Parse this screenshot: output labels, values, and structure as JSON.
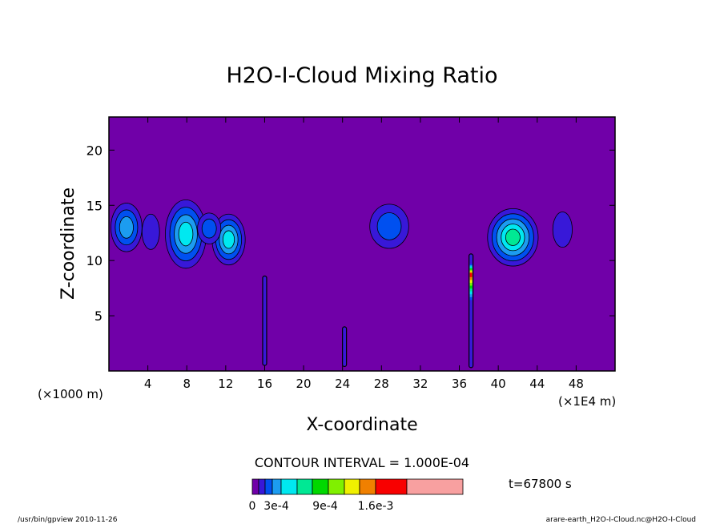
{
  "chart_data": {
    "type": "heatmap",
    "title": "H2O-I-Cloud Mixing Ratio",
    "xlabel": "X-coordinate",
    "ylabel": "Z-coordinate",
    "x_unit": "(×1E4 m)",
    "y_unit": "(×1000 m)",
    "xlim": [
      0,
      52
    ],
    "ylim": [
      0,
      23
    ],
    "x_ticks": [
      4,
      8,
      12,
      16,
      20,
      24,
      28,
      32,
      36,
      40,
      44,
      48
    ],
    "y_ticks": [
      5,
      10,
      15,
      20
    ],
    "contour_interval": "CONTOUR INTERVAL = 1.000E-04",
    "time_label": "t=67800 s",
    "footer_left": "/usr/bin/gpview  2010-11-26",
    "footer_right": "arare-earth_H2O-I-Cloud.nc@H2O-I-Cloud",
    "colorbar": {
      "colors": [
        "#7000a8",
        "#3818d8",
        "#0050f0",
        "#1c9cf0",
        "#00e8f0",
        "#00e894",
        "#00d800",
        "#80f000",
        "#f0f000",
        "#f08000",
        "#f80000",
        "#f8a0a0"
      ],
      "tick_labels": [
        "0",
        "3e-4",
        "9e-4",
        "1.6e-3"
      ]
    },
    "background_level": 0,
    "features": [
      {
        "x": 1.8,
        "z": 13.0,
        "rx": 1.6,
        "rz": 2.2,
        "max_level": 3
      },
      {
        "x": 4.3,
        "z": 12.6,
        "rx": 0.9,
        "rz": 1.6,
        "max_level": 1
      },
      {
        "x": 7.9,
        "z": 12.4,
        "rx": 2.1,
        "rz": 3.1,
        "max_level": 4
      },
      {
        "x": 12.3,
        "z": 11.9,
        "rx": 1.7,
        "rz": 2.3,
        "max_level": 4
      },
      {
        "x": 10.3,
        "z": 12.9,
        "rx": 1.2,
        "rz": 1.4,
        "max_level": 2
      },
      {
        "x": 28.8,
        "z": 13.1,
        "rx": 2.0,
        "rz": 2.0,
        "max_level": 2
      },
      {
        "x": 41.5,
        "z": 12.1,
        "rx": 2.6,
        "rz": 2.6,
        "max_level": 5
      },
      {
        "x": 46.6,
        "z": 12.8,
        "rx": 1.0,
        "rz": 1.6,
        "max_level": 1
      }
    ],
    "columns": [
      {
        "x": 16.0,
        "z_bottom": 0.5,
        "z_top": 8.6,
        "max_level": 2
      },
      {
        "x": 24.2,
        "z_bottom": 0.4,
        "z_top": 4.0,
        "max_level": 1
      },
      {
        "x": 37.2,
        "z_bottom": 0.3,
        "z_top": 10.6,
        "max_level": 10
      }
    ]
  }
}
